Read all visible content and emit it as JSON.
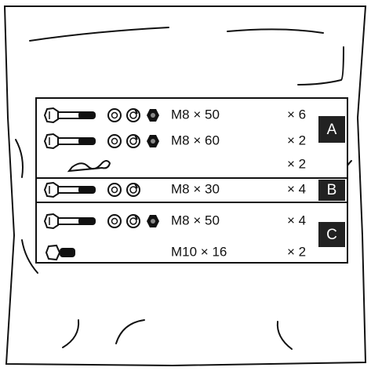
{
  "groups": [
    {
      "label": "A",
      "items": [
        {
          "spec": "M8 × 50",
          "qty": "× 6"
        },
        {
          "spec": "M8 × 60",
          "qty": "× 2"
        },
        {
          "qty": "× 2"
        }
      ]
    },
    {
      "label": "B",
      "items": [
        {
          "spec": "M8 × 30",
          "qty": "× 4"
        }
      ]
    },
    {
      "label": "C",
      "items": [
        {
          "spec": "M8 × 50",
          "qty": "× 4"
        },
        {
          "spec": "M10 × 16",
          "qty": "× 2"
        }
      ]
    }
  ]
}
